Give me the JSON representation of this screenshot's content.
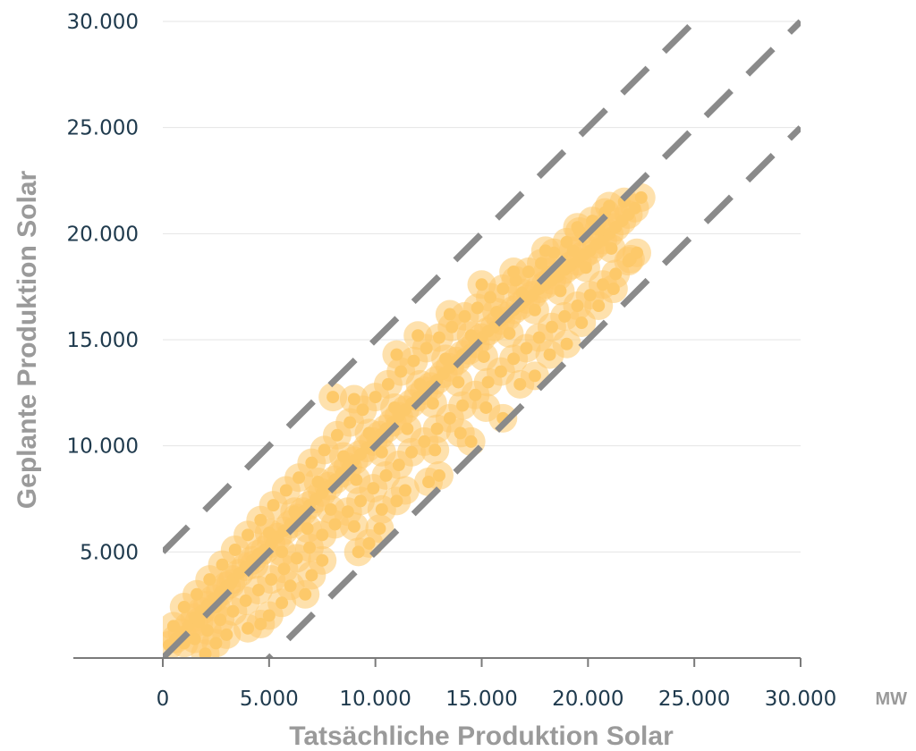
{
  "chart_data": {
    "type": "scatter",
    "title": "",
    "xlabel": "Tatsächliche Produktion Solar",
    "ylabel": "Geplante Produktion Solar",
    "x_unit": "MW",
    "xlim": [
      0,
      30000
    ],
    "ylim": [
      0,
      30000
    ],
    "x_ticks": [
      "0",
      "5.000",
      "10.000",
      "15.000",
      "20.000",
      "25.000",
      "30.000"
    ],
    "y_ticks": [
      "5.000",
      "10.000",
      "15.000",
      "20.000",
      "25.000",
      "30.000"
    ],
    "grid": "horizontal",
    "point_color": "#fdc96a",
    "reference_line_color": "#8a8a8a",
    "reference_lines": [
      {
        "x": [
          0,
          30000
        ],
        "y": [
          5000,
          35000
        ]
      },
      {
        "x": [
          0,
          30000
        ],
        "y": [
          0,
          30000
        ]
      },
      {
        "x": [
          0,
          30000
        ],
        "y": [
          -5000,
          25000
        ]
      }
    ],
    "points": [
      [
        300,
        600
      ],
      [
        600,
        900
      ],
      [
        900,
        1200
      ],
      [
        1200,
        1500
      ],
      [
        1500,
        1900
      ],
      [
        1800,
        2200
      ],
      [
        2100,
        2500
      ],
      [
        2400,
        2800
      ],
      [
        2700,
        3100
      ],
      [
        3000,
        3400
      ],
      [
        3300,
        3700
      ],
      [
        3600,
        4000
      ],
      [
        3900,
        4300
      ],
      [
        4200,
        4600
      ],
      [
        4500,
        4900
      ],
      [
        4800,
        5100
      ],
      [
        5100,
        5400
      ],
      [
        5400,
        5700
      ],
      [
        5700,
        6000
      ],
      [
        6000,
        6300
      ],
      [
        6300,
        6600
      ],
      [
        6600,
        6900
      ],
      [
        6900,
        7200
      ],
      [
        7200,
        7500
      ],
      [
        7500,
        7800
      ],
      [
        7800,
        8100
      ],
      [
        8100,
        8400
      ],
      [
        8400,
        8700
      ],
      [
        8700,
        9000
      ],
      [
        9000,
        9300
      ],
      [
        9300,
        9600
      ],
      [
        9600,
        9900
      ],
      [
        9900,
        10200
      ],
      [
        10200,
        10500
      ],
      [
        10500,
        10800
      ],
      [
        10800,
        11100
      ],
      [
        11100,
        11400
      ],
      [
        11400,
        11700
      ],
      [
        11700,
        12000
      ],
      [
        12000,
        12300
      ],
      [
        12300,
        12600
      ],
      [
        12600,
        12800
      ],
      [
        12900,
        13100
      ],
      [
        13200,
        13400
      ],
      [
        13500,
        13700
      ],
      [
        13800,
        14000
      ],
      [
        14100,
        14300
      ],
      [
        14400,
        14500
      ],
      [
        14700,
        14800
      ],
      [
        15000,
        15100
      ],
      [
        15300,
        15400
      ],
      [
        15600,
        15600
      ],
      [
        15900,
        15900
      ],
      [
        16200,
        16100
      ],
      [
        16500,
        16400
      ],
      [
        16800,
        16600
      ],
      [
        17100,
        16900
      ],
      [
        17400,
        17100
      ],
      [
        17700,
        17400
      ],
      [
        18000,
        17600
      ],
      [
        18300,
        17800
      ],
      [
        18600,
        18000
      ],
      [
        18900,
        18300
      ],
      [
        19200,
        18500
      ],
      [
        19500,
        18700
      ],
      [
        19800,
        19000
      ],
      [
        20100,
        19200
      ],
      [
        20400,
        19500
      ],
      [
        20700,
        19700
      ],
      [
        21000,
        20000
      ],
      [
        21300,
        20300
      ],
      [
        21600,
        20600
      ],
      [
        21900,
        20900
      ],
      [
        22200,
        21200
      ],
      [
        22500,
        21700
      ],
      [
        500,
        1500
      ],
      [
        1000,
        2400
      ],
      [
        1600,
        3000
      ],
      [
        2200,
        3700
      ],
      [
        2800,
        4400
      ],
      [
        3400,
        5100
      ],
      [
        4000,
        5800
      ],
      [
        4600,
        6500
      ],
      [
        5200,
        7200
      ],
      [
        5800,
        7900
      ],
      [
        6400,
        8500
      ],
      [
        7000,
        9200
      ],
      [
        7600,
        9800
      ],
      [
        8200,
        10500
      ],
      [
        8800,
        11100
      ],
      [
        9400,
        11700
      ],
      [
        10000,
        12300
      ],
      [
        10600,
        12900
      ],
      [
        11200,
        13500
      ],
      [
        11800,
        14000
      ],
      [
        12400,
        14600
      ],
      [
        13000,
        15100
      ],
      [
        13600,
        15600
      ],
      [
        14200,
        16100
      ],
      [
        14800,
        16500
      ],
      [
        15400,
        17000
      ],
      [
        16000,
        17400
      ],
      [
        16600,
        17800
      ],
      [
        17200,
        18200
      ],
      [
        17800,
        18600
      ],
      [
        18400,
        19100
      ],
      [
        19000,
        19600
      ],
      [
        19600,
        20100
      ],
      [
        20200,
        20600
      ],
      [
        20800,
        21000
      ],
      [
        1500,
        900
      ],
      [
        2100,
        1300
      ],
      [
        2700,
        1800
      ],
      [
        3300,
        2200
      ],
      [
        3900,
        2700
      ],
      [
        4500,
        3200
      ],
      [
        5100,
        3700
      ],
      [
        5700,
        4200
      ],
      [
        6300,
        4700
      ],
      [
        6900,
        5200
      ],
      [
        7500,
        5800
      ],
      [
        8100,
        6300
      ],
      [
        8700,
        6900
      ],
      [
        9300,
        7400
      ],
      [
        9900,
        8000
      ],
      [
        10500,
        8600
      ],
      [
        11100,
        9100
      ],
      [
        11700,
        9700
      ],
      [
        12300,
        10200
      ],
      [
        12900,
        10800
      ],
      [
        13500,
        11300
      ],
      [
        14100,
        11900
      ],
      [
        14700,
        12400
      ],
      [
        15300,
        13000
      ],
      [
        15900,
        13500
      ],
      [
        16500,
        14100
      ],
      [
        17100,
        14600
      ],
      [
        17700,
        15100
      ],
      [
        18300,
        15600
      ],
      [
        18900,
        16100
      ],
      [
        19500,
        16600
      ],
      [
        20100,
        17100
      ],
      [
        20700,
        17600
      ],
      [
        21300,
        18100
      ],
      [
        21900,
        18700
      ],
      [
        1000,
        700
      ],
      [
        1700,
        1700
      ],
      [
        2500,
        2400
      ],
      [
        3200,
        3500
      ],
      [
        4300,
        4400
      ],
      [
        5000,
        5900
      ],
      [
        5600,
        5000
      ],
      [
        6200,
        6900
      ],
      [
        6800,
        6100
      ],
      [
        7300,
        8300
      ],
      [
        7900,
        7000
      ],
      [
        8500,
        9500
      ],
      [
        9100,
        8400
      ],
      [
        9700,
        10600
      ],
      [
        10300,
        9700
      ],
      [
        10900,
        11800
      ],
      [
        11500,
        10800
      ],
      [
        12100,
        12900
      ],
      [
        12700,
        12000
      ],
      [
        13300,
        14100
      ],
      [
        13900,
        13000
      ],
      [
        14500,
        15200
      ],
      [
        15100,
        14200
      ],
      [
        15700,
        16300
      ],
      [
        16300,
        15300
      ],
      [
        16900,
        17200
      ],
      [
        17500,
        16400
      ],
      [
        18100,
        18200
      ],
      [
        18700,
        17300
      ],
      [
        19300,
        19200
      ],
      [
        19900,
        18400
      ],
      [
        20500,
        20200
      ],
      [
        21100,
        19300
      ],
      [
        21700,
        21500
      ],
      [
        8000,
        12300
      ],
      [
        9000,
        12200
      ],
      [
        11000,
        14300
      ],
      [
        12000,
        15200
      ],
      [
        13500,
        16200
      ],
      [
        15000,
        17600
      ],
      [
        16500,
        18200
      ],
      [
        18000,
        19200
      ],
      [
        19500,
        20300
      ],
      [
        21000,
        21300
      ],
      [
        6000,
        3400
      ],
      [
        7500,
        4600
      ],
      [
        9000,
        6200
      ],
      [
        11000,
        7400
      ],
      [
        12500,
        8300
      ],
      [
        13000,
        8600
      ],
      [
        14500,
        10200
      ],
      [
        16000,
        11300
      ],
      [
        17500,
        13300
      ],
      [
        19000,
        14800
      ],
      [
        20500,
        16600
      ],
      [
        22000,
        18800
      ],
      [
        5000,
        2000
      ],
      [
        5600,
        2600
      ],
      [
        6700,
        3000
      ],
      [
        7000,
        3900
      ],
      [
        9700,
        5400
      ],
      [
        10200,
        6100
      ],
      [
        2000,
        200
      ],
      [
        2500,
        700
      ],
      [
        3000,
        1100
      ],
      [
        4000,
        1400
      ],
      [
        4600,
        1600
      ],
      [
        9200,
        5000
      ],
      [
        10300,
        7000
      ],
      [
        11400,
        7900
      ],
      [
        12800,
        9800
      ],
      [
        14000,
        10600
      ],
      [
        15200,
        11800
      ],
      [
        16800,
        12900
      ],
      [
        18200,
        14300
      ],
      [
        19700,
        15800
      ],
      [
        21200,
        17400
      ],
      [
        22300,
        19100
      ]
    ]
  }
}
